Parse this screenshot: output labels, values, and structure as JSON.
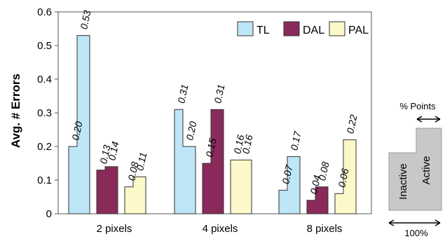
{
  "chart_data": {
    "type": "bar",
    "ylabel": "Avg. # Errors",
    "ylim": [
      0,
      0.6
    ],
    "yticks": [
      "0",
      "0.1",
      "0.2",
      "0.3",
      "0.4",
      "0.5",
      "0.6"
    ],
    "categories": [
      "2 pixels",
      "4 pixels",
      "8 pixels"
    ],
    "legend_position": "top-right",
    "series": [
      {
        "name": "TL",
        "color": "#bde6f6",
        "inactive": [
          0.2,
          0.31,
          0.07
        ],
        "active": [
          0.53,
          0.2,
          0.17
        ],
        "inactive_labels": [
          "0.20",
          "0.31",
          "0.07"
        ],
        "active_labels": [
          "0.53",
          "0.20",
          "0.17"
        ]
      },
      {
        "name": "DAL",
        "color": "#8a2a5a",
        "inactive": [
          0.13,
          0.15,
          0.04
        ],
        "active": [
          0.14,
          0.31,
          0.08
        ],
        "inactive_labels": [
          "0.13",
          "0.15",
          "0.04"
        ],
        "active_labels": [
          "0.14",
          "0.31",
          "0.08"
        ]
      },
      {
        "name": "PAL",
        "color": "#fdf8c9",
        "inactive": [
          0.08,
          0.16,
          0.06
        ],
        "active": [
          0.11,
          0.16,
          0.22
        ],
        "inactive_labels": [
          "0.08",
          "0.16",
          "0.06"
        ],
        "active_labels": [
          "0.11",
          "0.16",
          "0.22"
        ]
      }
    ],
    "annotation": {
      "top_label": "% Points",
      "bottom_label": "100%",
      "left_label": "Inactive",
      "right_label": "Active"
    }
  }
}
